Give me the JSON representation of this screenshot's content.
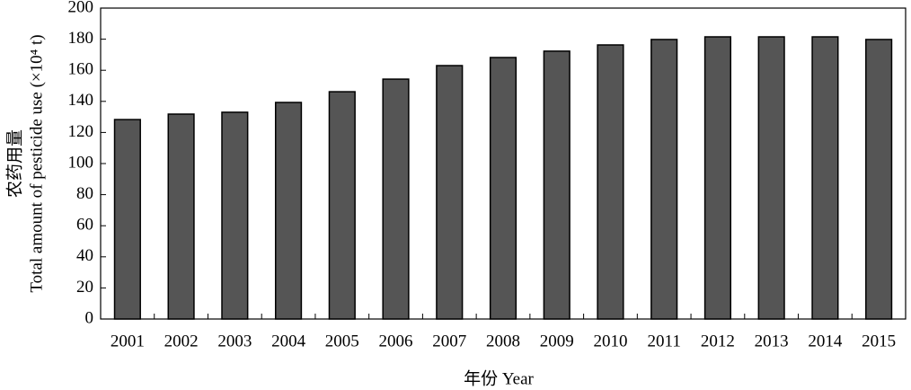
{
  "chart_data": {
    "type": "bar",
    "x_label": "年份 Year",
    "y_label": [
      "农药用量",
      "Total amount of pesticide use (×10⁴ t)"
    ],
    "categories": [
      "2001",
      "2002",
      "2003",
      "2004",
      "2005",
      "2006",
      "2007",
      "2008",
      "2009",
      "2010",
      "2011",
      "2012",
      "2013",
      "2014",
      "2015"
    ],
    "values": [
      128.3,
      131.8,
      133,
      139.3,
      146.2,
      154.3,
      163,
      168.2,
      172.3,
      176.3,
      179.8,
      181.5,
      181.5,
      181.5,
      179.8
    ],
    "color": "#555555",
    "ylim": [
      0,
      200
    ],
    "yticks": [
      0,
      20,
      40,
      60,
      80,
      100,
      120,
      140,
      160,
      180,
      200
    ],
    "grid": false
  }
}
